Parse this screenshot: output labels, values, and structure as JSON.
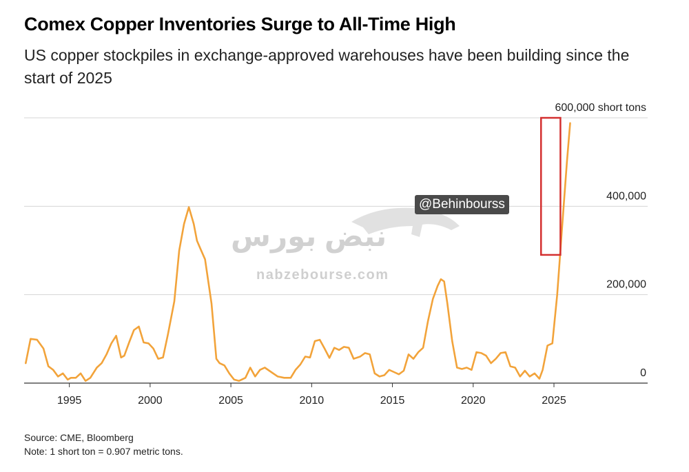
{
  "chart_data": {
    "type": "line",
    "title": "Comex Copper Inventories Surge to All-Time High",
    "subtitle": "US copper stockpiles in exchange-approved warehouses have been building since the start of 2025",
    "xlabel": "",
    "ylabel": "",
    "unit_label": "600,000 short tons",
    "xlim": [
      1992.2,
      2030.8
    ],
    "ylim": [
      0,
      600000
    ],
    "x_ticks": [
      1995,
      2000,
      2005,
      2010,
      2015,
      2020,
      2025
    ],
    "x_tick_labels": [
      "1995",
      "2000",
      "2005",
      "2010",
      "2015",
      "2020",
      "2025"
    ],
    "y_ticks": [
      0,
      200000,
      400000,
      600000
    ],
    "y_tick_labels": [
      "0",
      "200,000",
      "400,000",
      "600,000 short tons"
    ],
    "grid": true,
    "line_color": "#f2a33a",
    "highlight_color": "#d32f2f",
    "highlight_box": {
      "x_start": 2024.2,
      "x_end": 2025.4,
      "y_start": 290000,
      "y_end": 600000
    },
    "series": [
      {
        "name": "Comex copper inventories",
        "x": [
          1992.3,
          1992.6,
          1993.0,
          1993.4,
          1993.7,
          1994.0,
          1994.3,
          1994.6,
          1994.9,
          1995.1,
          1995.4,
          1995.7,
          1996.0,
          1996.3,
          1996.7,
          1997.0,
          1997.3,
          1997.6,
          1997.9,
          1998.2,
          1998.4,
          1998.7,
          1999.0,
          1999.3,
          1999.6,
          1999.9,
          2000.2,
          2000.5,
          2000.8,
          2001.1,
          2001.5,
          2001.8,
          2002.1,
          2002.4,
          2002.7,
          2002.9,
          2003.1,
          2003.4,
          2003.8,
          2004.1,
          2004.3,
          2004.6,
          2004.9,
          2005.2,
          2005.5,
          2005.9,
          2006.2,
          2006.5,
          2006.8,
          2007.1,
          2007.5,
          2007.9,
          2008.3,
          2008.7,
          2009.0,
          2009.3,
          2009.6,
          2009.9,
          2010.2,
          2010.5,
          2010.8,
          2011.1,
          2011.4,
          2011.7,
          2012.0,
          2012.3,
          2012.6,
          2013.0,
          2013.3,
          2013.6,
          2013.9,
          2014.2,
          2014.5,
          2014.8,
          2015.1,
          2015.4,
          2015.7,
          2016.0,
          2016.3,
          2016.6,
          2016.9,
          2017.2,
          2017.5,
          2017.8,
          2018.0,
          2018.2,
          2018.4,
          2018.7,
          2019.0,
          2019.3,
          2019.6,
          2019.9,
          2020.2,
          2020.5,
          2020.8,
          2021.1,
          2021.4,
          2021.7,
          2022.0,
          2022.3,
          2022.6,
          2022.9,
          2023.2,
          2023.5,
          2023.8,
          2024.1,
          2024.3,
          2024.6,
          2024.9,
          2025.2,
          2025.5,
          2025.8,
          2026.0
        ],
        "values": [
          45000,
          100000,
          98000,
          78000,
          38000,
          30000,
          15000,
          22000,
          8000,
          12000,
          12000,
          22000,
          5000,
          12000,
          35000,
          45000,
          65000,
          90000,
          107000,
          58000,
          62000,
          92000,
          120000,
          128000,
          92000,
          90000,
          78000,
          55000,
          58000,
          110000,
          185000,
          300000,
          360000,
          398000,
          360000,
          322000,
          305000,
          280000,
          180000,
          55000,
          45000,
          40000,
          22000,
          8000,
          5000,
          12000,
          35000,
          15000,
          30000,
          35000,
          25000,
          15000,
          12000,
          12000,
          30000,
          42000,
          60000,
          58000,
          95000,
          98000,
          78000,
          57000,
          80000,
          75000,
          82000,
          80000,
          55000,
          60000,
          68000,
          65000,
          22000,
          15000,
          18000,
          30000,
          25000,
          20000,
          28000,
          65000,
          55000,
          70000,
          80000,
          140000,
          190000,
          220000,
          235000,
          230000,
          180000,
          95000,
          35000,
          32000,
          35000,
          30000,
          70000,
          68000,
          62000,
          45000,
          55000,
          68000,
          70000,
          38000,
          35000,
          15000,
          28000,
          15000,
          22000,
          10000,
          30000,
          85000,
          90000,
          200000,
          350000,
          500000,
          588000
        ]
      }
    ]
  },
  "source": "Source: CME, Bloomberg",
  "note": "Note: 1 short ton = 0.907 metric tons.",
  "watermark": {
    "handle": "@Behinbourss",
    "logo_text": "نبض بورس",
    "site": "nabzebourse.com"
  }
}
